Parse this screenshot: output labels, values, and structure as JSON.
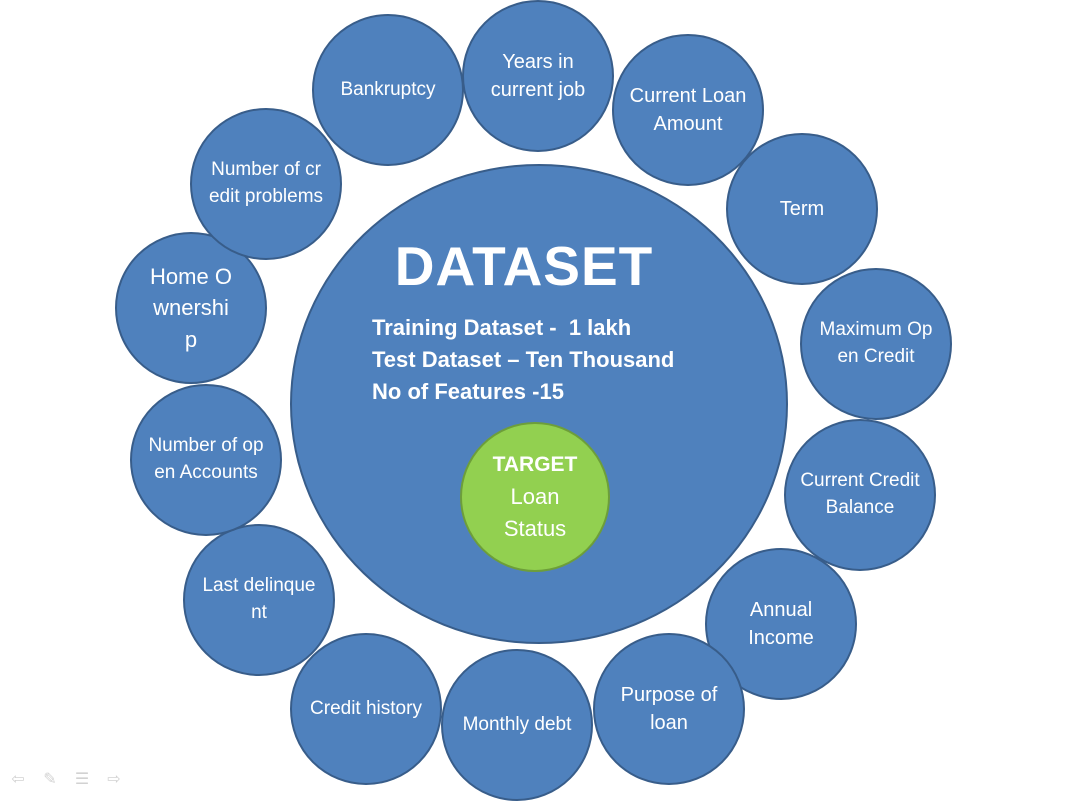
{
  "dataset": {
    "title": "DATASET",
    "lines": [
      "Training Dataset -  1 lakh",
      "Test Dataset – Ten Thousand",
      "No of Features -15"
    ]
  },
  "target": {
    "label": "TARGET",
    "value_line1": "Loan",
    "value_line2": "Status"
  },
  "features": [
    {
      "name": "Years in current job"
    },
    {
      "name": "Current Loan Amount"
    },
    {
      "name": "Term"
    },
    {
      "name": "Maximum Open Credit"
    },
    {
      "name": "Current Credit Balance"
    },
    {
      "name": "Annual Income"
    },
    {
      "name": "Purpose of loan"
    },
    {
      "name": "Monthly debt"
    },
    {
      "name": "Credit history"
    },
    {
      "name": "Last delinquent"
    },
    {
      "name": "Number of open Accounts"
    },
    {
      "name": "Home Ownership"
    },
    {
      "name": "Number of credit problems"
    },
    {
      "name": "Bankruptcy"
    }
  ],
  "colors": {
    "circle_fill": "#4f81bd",
    "circle_border": "#385d8a",
    "target_fill": "#92d050",
    "text": "#ffffff"
  },
  "navigation_icons": [
    "back-arrow-icon",
    "pen-icon",
    "menu-icon",
    "forward-arrow-icon"
  ]
}
